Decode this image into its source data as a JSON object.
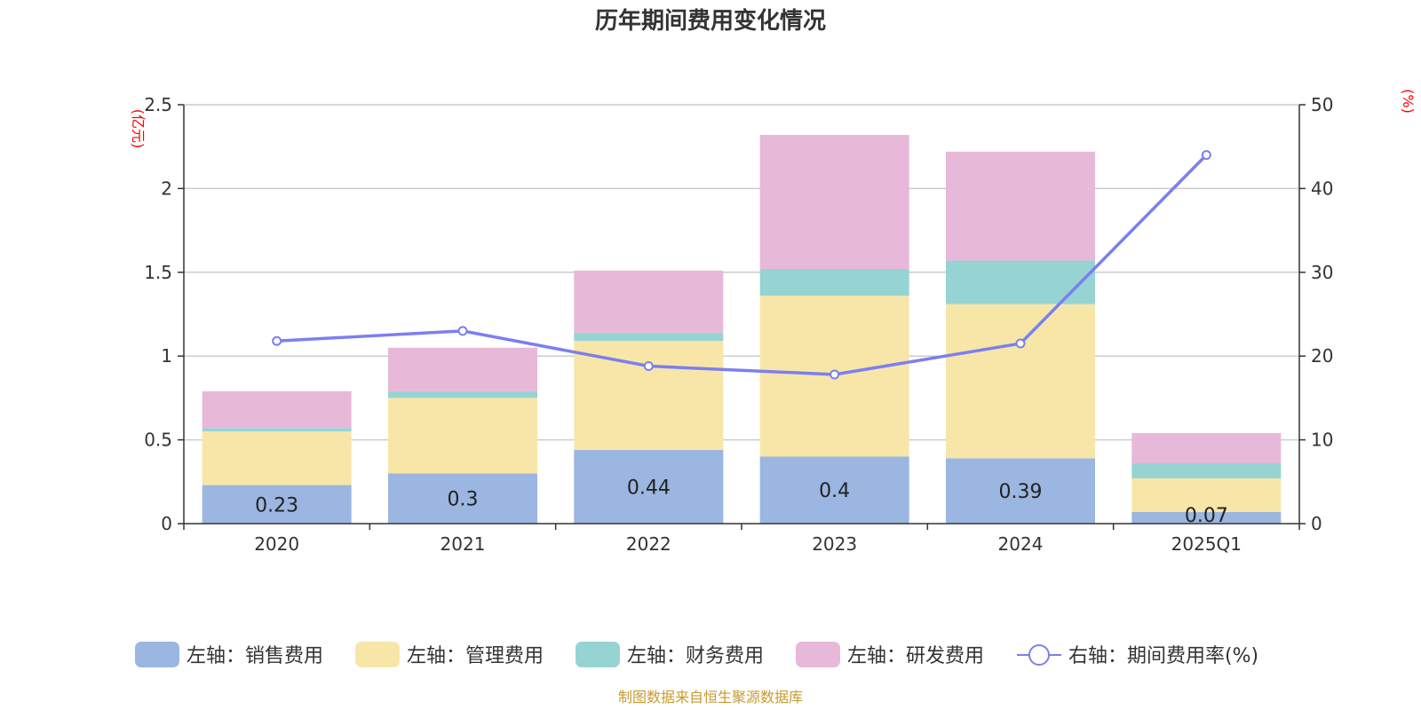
{
  "chart_data": {
    "type": "bar",
    "stacked": true,
    "title": "历年期间费用变化情况",
    "categories": [
      "2020",
      "2021",
      "2022",
      "2023",
      "2024",
      "2025Q1"
    ],
    "left_axis": {
      "unit": "(亿元)",
      "ylim": [
        0,
        2.5
      ],
      "ticks": [
        "0",
        "0.5",
        "1",
        "1.5",
        "2",
        "2.5"
      ]
    },
    "right_axis": {
      "unit": "(%)",
      "ylim": [
        0,
        50
      ],
      "ticks": [
        "0",
        "10",
        "20",
        "30",
        "40",
        "50"
      ]
    },
    "grid": true,
    "legend_position": "bottom",
    "series": [
      {
        "name": "左轴：销售费用",
        "type": "bar",
        "axis": "left",
        "color": "#9bb6e0",
        "values": [
          0.23,
          0.3,
          0.44,
          0.4,
          0.39,
          0.07
        ],
        "labels": [
          "0.23",
          "0.3",
          "0.44",
          "0.4",
          "0.39",
          "0.07"
        ]
      },
      {
        "name": "左轴：管理费用",
        "type": "bar",
        "axis": "left",
        "color": "#f8e6a8",
        "values": [
          0.32,
          0.45,
          0.65,
          0.96,
          0.92,
          0.2
        ]
      },
      {
        "name": "左轴：财务费用",
        "type": "bar",
        "axis": "left",
        "color": "#96d4d4",
        "values": [
          0.02,
          0.04,
          0.05,
          0.16,
          0.26,
          0.09
        ]
      },
      {
        "name": "左轴：研发费用",
        "type": "bar",
        "axis": "left",
        "color": "#e8b8d8",
        "values": [
          0.22,
          0.26,
          0.37,
          0.8,
          0.65,
          0.18
        ]
      },
      {
        "name": "右轴：期间费用率(%)",
        "type": "line",
        "axis": "right",
        "color": "#7b7ff0",
        "values": [
          21.8,
          23.0,
          18.8,
          17.8,
          21.5,
          44.0
        ]
      }
    ],
    "source": "制图数据来自恒生聚源数据库"
  }
}
